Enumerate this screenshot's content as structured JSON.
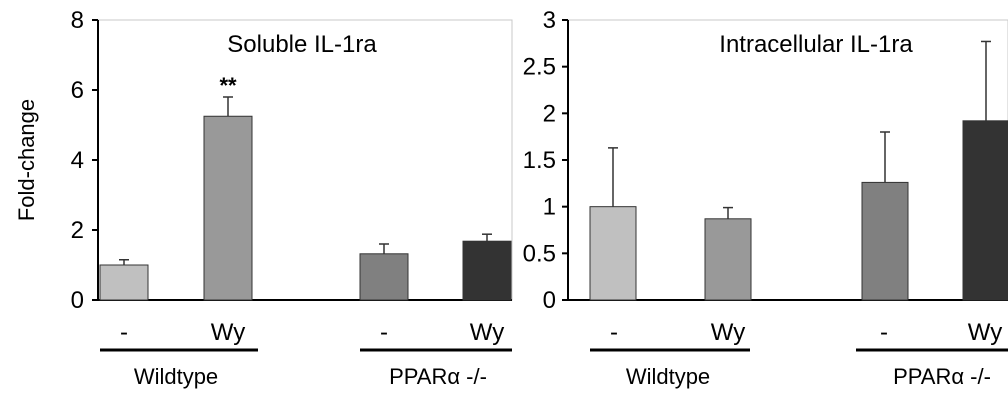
{
  "y_axis_label": "Fold-change",
  "chart_data": [
    {
      "type": "bar",
      "title": "Soluble IL-1ra",
      "ylabel": "Fold-change",
      "ylim": [
        0,
        8
      ],
      "yticks": [
        "0",
        "2",
        "4",
        "6",
        "8"
      ],
      "categories": [
        "-",
        "Wy",
        "-",
        "Wy"
      ],
      "groups": [
        {
          "label": "Wildtype",
          "categories": [
            0,
            1
          ]
        },
        {
          "label": "PPARα -/-",
          "categories": [
            2,
            3
          ]
        }
      ],
      "values": [
        1.0,
        5.25,
        1.32,
        1.68
      ],
      "errors": [
        0.15,
        0.55,
        0.28,
        0.2
      ],
      "colors": [
        "#c0c0c0",
        "#999999",
        "#808080",
        "#333333"
      ],
      "annotations": [
        {
          "category": 1,
          "text": "**"
        }
      ],
      "grid": false
    },
    {
      "type": "bar",
      "title": "Intracellular IL-1ra",
      "ylim": [
        0,
        3
      ],
      "yticks": [
        "0",
        "0.5",
        "1",
        "1.5",
        "2",
        "2.5",
        "3"
      ],
      "categories": [
        "-",
        "Wy",
        "-",
        "Wy"
      ],
      "groups": [
        {
          "label": "Wildtype",
          "categories": [
            0,
            1
          ]
        },
        {
          "label": "PPARα -/-",
          "categories": [
            2,
            3
          ]
        }
      ],
      "values": [
        1.0,
        0.87,
        1.26,
        1.92
      ],
      "errors": [
        0.63,
        0.12,
        0.54,
        0.85
      ],
      "colors": [
        "#c0c0c0",
        "#999999",
        "#808080",
        "#333333"
      ],
      "annotations": [],
      "grid": false
    }
  ]
}
